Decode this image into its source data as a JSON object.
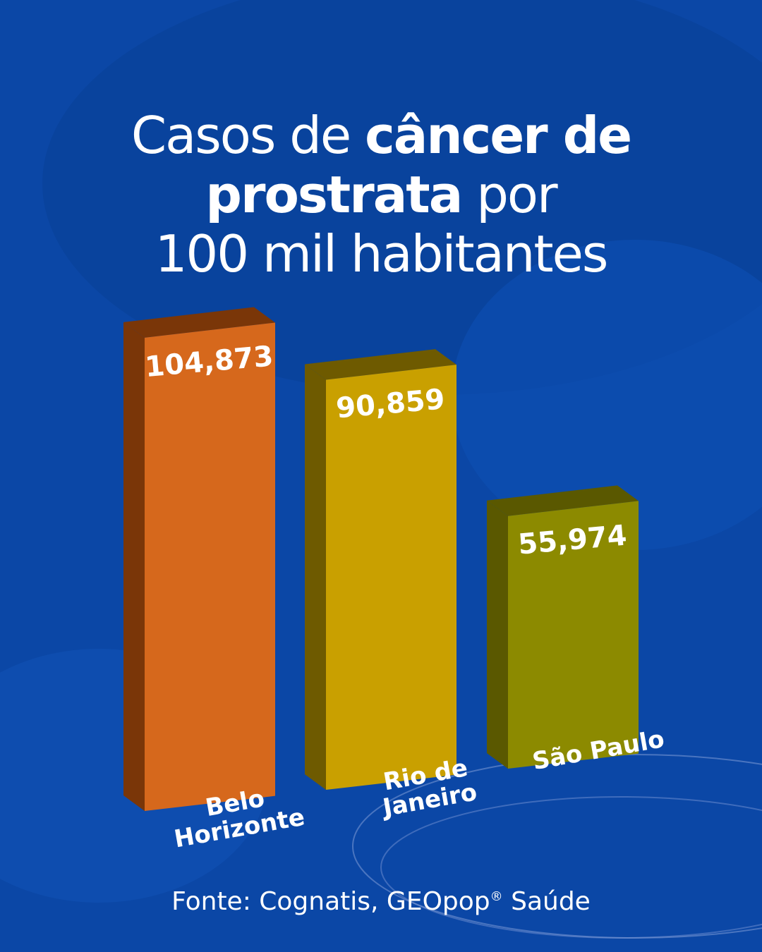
{
  "title": {
    "line1_prefix": "Casos de",
    "line1_bold": "câncer de",
    "line2_bold": "prostrata",
    "line2_suffix": "por",
    "line3": "100 mil habitantes"
  },
  "source": {
    "text": "Fonte: Cognatis, GEOpop",
    "mark": "®",
    "suffix": "Saúde"
  },
  "chart_data": {
    "type": "bar",
    "title": "Casos de câncer de prostrata por 100 mil habitantes",
    "categories": [
      "Belo Horizonte",
      "Rio de Janeiro",
      "São Paulo"
    ],
    "category_lines": [
      [
        "Belo",
        "Horizonte"
      ],
      [
        "Rio de",
        "Janeiro"
      ],
      [
        "São Paulo"
      ]
    ],
    "values": [
      104.873,
      90.859,
      55.974
    ],
    "value_labels": [
      "104,873",
      "90,859",
      "55,974"
    ],
    "bar_colors": [
      "#d6681c",
      "#c9a000",
      "#8c8a00"
    ],
    "side_colors": [
      "#7a3608",
      "#6e5a00",
      "#5a5800"
    ],
    "grid": false,
    "legend": "none"
  }
}
